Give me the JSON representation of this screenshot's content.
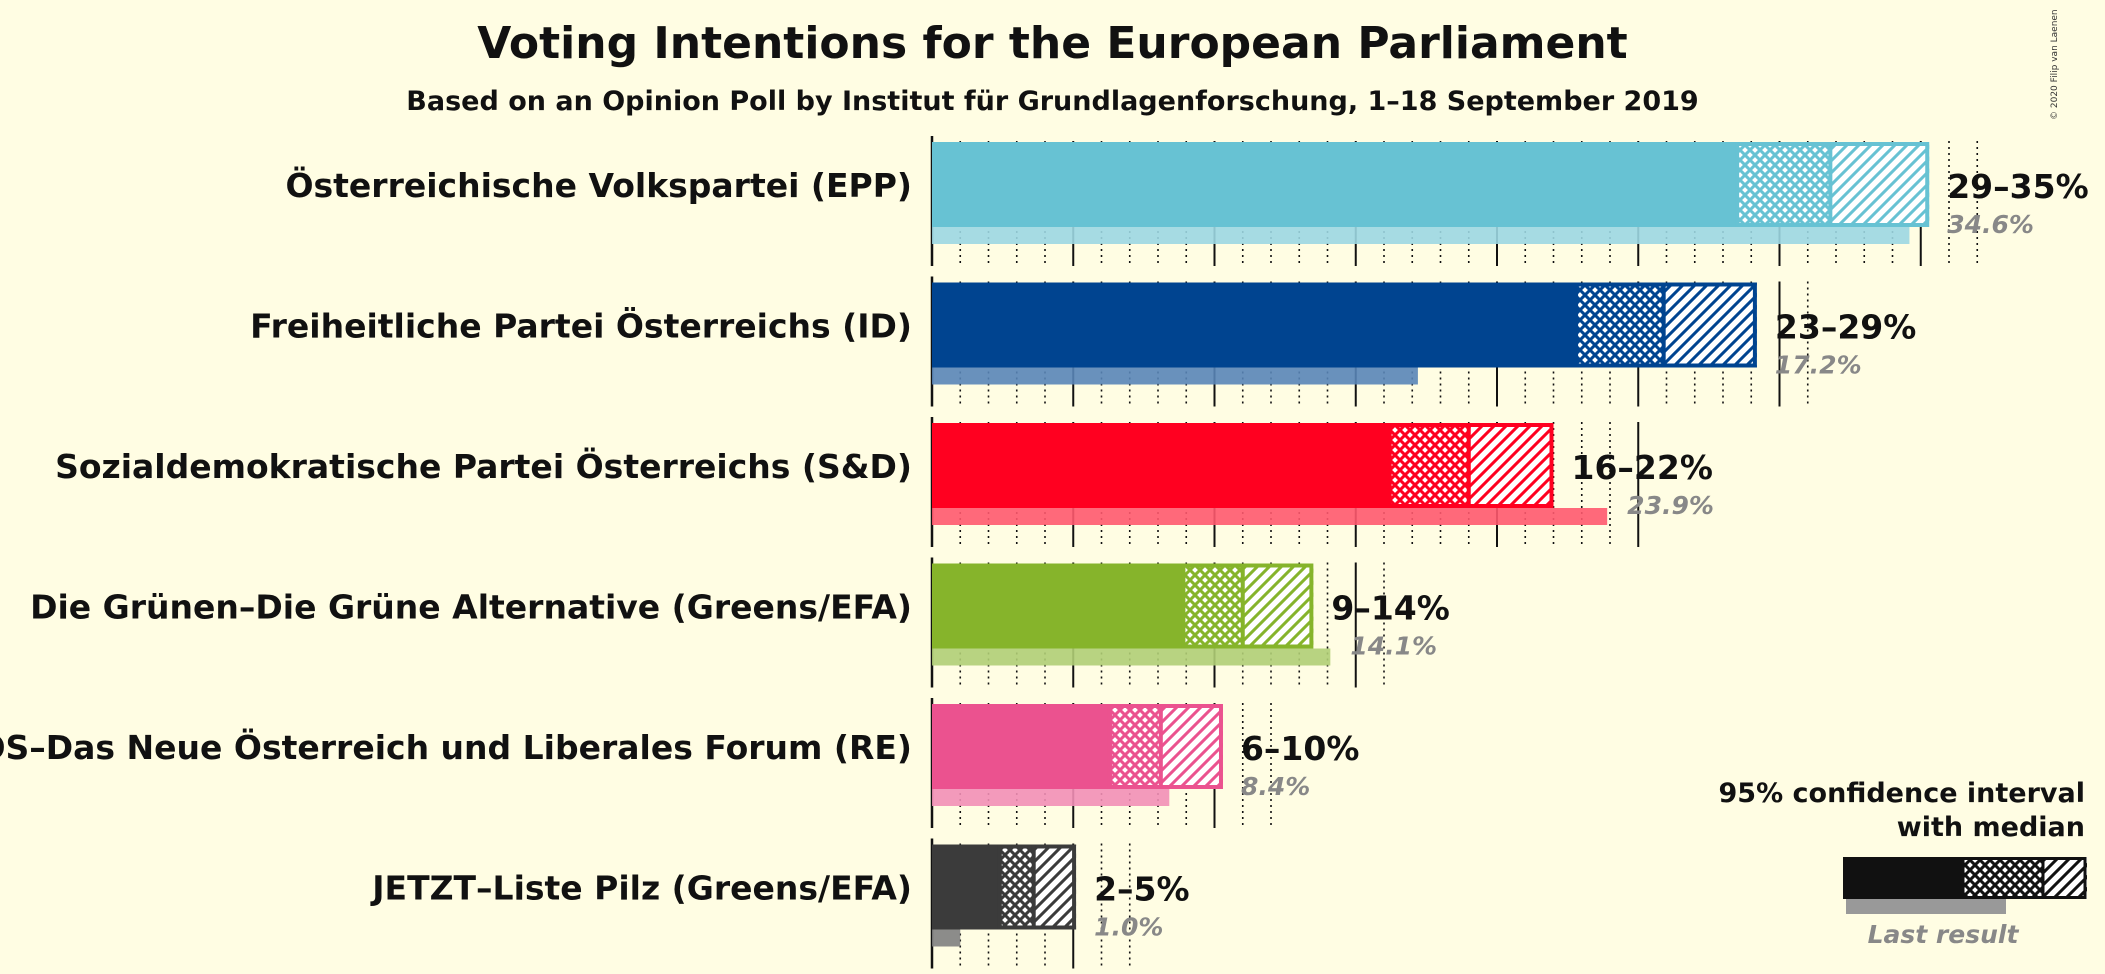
{
  "title": "Voting Intentions for the European Parliament",
  "subtitle": "Based on an Opinion Poll by Institut für Grundlagenforschung, 1–18 September 2019",
  "copyright": "© 2020 Filip van Laenen",
  "legend": {
    "line1": "95% confidence interval",
    "line2": "with median",
    "last_result": "Last result"
  },
  "chart_data": {
    "type": "bar",
    "orientation": "horizontal",
    "title": "Voting Intentions for the European Parliament",
    "subtitle": "Based on an Opinion Poll by Institut für Grundlagenforschung, 1–18 September 2019",
    "unit": "%",
    "parties": [
      {
        "name": "Österreichische Volkspartei (EPP)",
        "color": "#67c2d3",
        "ci_low": 28.5,
        "median": 31.8,
        "ci_high": 35.3,
        "range_label": "29–35%",
        "last_result": 34.6,
        "last_label": "34.6%"
      },
      {
        "name": "Freiheitliche Partei Österreichs (ID)",
        "color": "#004490",
        "ci_low": 22.8,
        "median": 25.9,
        "ci_high": 29.2,
        "range_label": "23–29%",
        "last_result": 17.2,
        "last_label": "17.2%"
      },
      {
        "name": "Sozialdemokratische Partei Österreichs (S&D)",
        "color": "#ff0020",
        "ci_low": 16.2,
        "median": 19.0,
        "ci_high": 22.0,
        "range_label": "16–22%",
        "last_result": 23.9,
        "last_label": "23.9%"
      },
      {
        "name": "Die Grünen–Die Grüne Alternative (Greens/EFA)",
        "color": "#86b42b",
        "ci_low": 8.9,
        "median": 11.0,
        "ci_high": 13.5,
        "range_label": "9–14%",
        "last_result": 14.1,
        "last_label": "14.1%"
      },
      {
        "name": "NEOS–Das Neue Österreich und Liberales Forum (RE)",
        "color": "#eb528f",
        "ci_low": 6.3,
        "median": 8.1,
        "ci_high": 10.3,
        "range_label": "6–10%",
        "last_result": 8.4,
        "last_label": "8.4%"
      },
      {
        "name": "JETZT–Liste Pilz (Greens/EFA)",
        "color": "#3b3b3b",
        "ci_low": 2.4,
        "median": 3.6,
        "ci_high": 5.1,
        "range_label": "2–5%",
        "last_result": 1.0,
        "last_label": "1.0%"
      }
    ]
  }
}
